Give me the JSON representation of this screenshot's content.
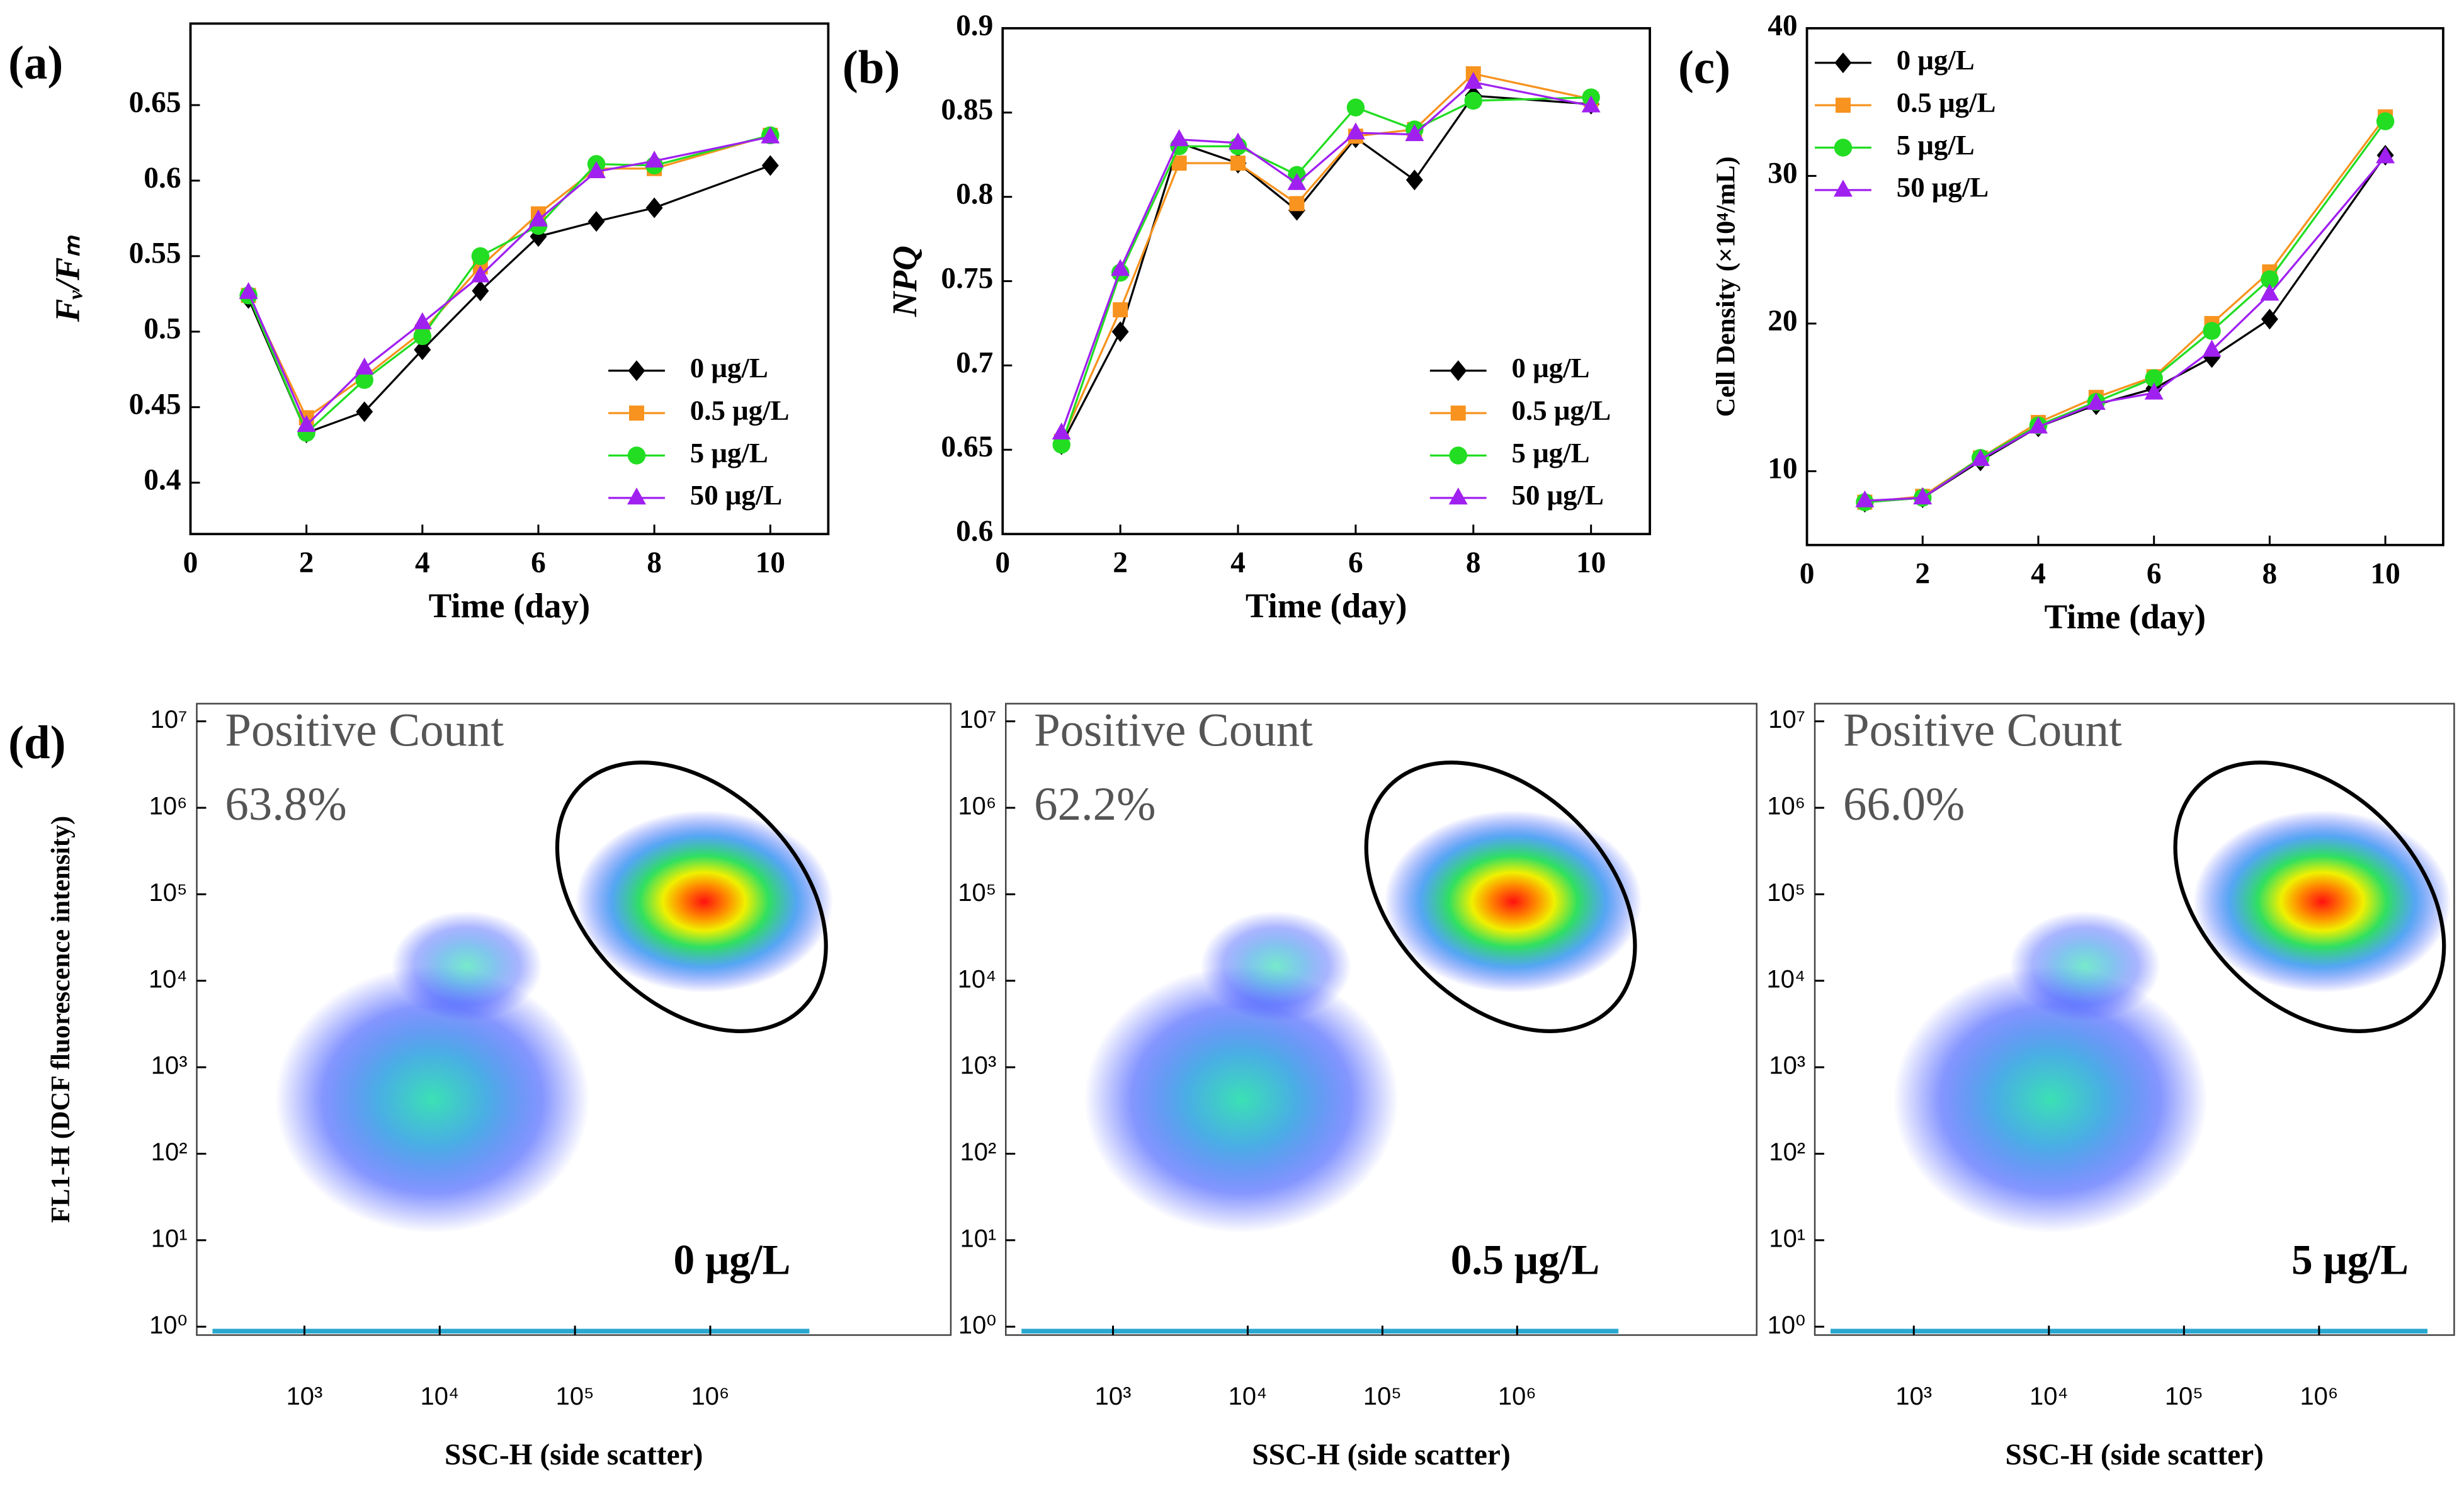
{
  "chart_data": [
    {
      "type": "line",
      "panel_label": "(a)",
      "xlabel": "Time (day)",
      "ylabel": "Fᵥ/Fₘ",
      "ylabel_italic": true,
      "x": [
        1,
        2,
        3,
        4,
        5,
        6,
        7,
        8,
        10
      ],
      "xlim": [
        0,
        11
      ],
      "xticks": [
        0,
        2,
        4,
        6,
        8,
        10
      ],
      "ylim": [
        0.366,
        0.704
      ],
      "yticks": [
        0.4,
        0.45,
        0.5,
        0.55,
        0.6,
        0.65
      ],
      "legend": "lower right",
      "series": [
        {
          "name": "0 μg/L",
          "color": "#000000",
          "marker": "diamond",
          "values": [
            0.522,
            0.433,
            0.447,
            0.488,
            0.527,
            0.563,
            0.573,
            0.582,
            0.61
          ]
        },
        {
          "name": "0.5 μg/L",
          "color": "#f7931e",
          "marker": "square",
          "values": [
            0.524,
            0.443,
            0.47,
            0.5,
            0.543,
            0.578,
            0.608,
            0.608,
            0.63
          ]
        },
        {
          "name": "5 μg/L",
          "color": "#22dd22",
          "marker": "circle",
          "values": [
            0.524,
            0.433,
            0.468,
            0.497,
            0.55,
            0.57,
            0.611,
            0.61,
            0.63
          ]
        },
        {
          "name": "50 μg/L",
          "color": "#a020f0",
          "marker": "triangle",
          "values": [
            0.526,
            0.438,
            0.476,
            0.506,
            0.537,
            0.574,
            0.606,
            0.613,
            0.629
          ]
        }
      ]
    },
    {
      "type": "line",
      "panel_label": "(b)",
      "xlabel": "Time (day)",
      "ylabel": "NPQ",
      "ylabel_italic": true,
      "x": [
        1,
        2,
        3,
        4,
        5,
        6,
        7,
        8,
        10
      ],
      "xlim": [
        0,
        11
      ],
      "xticks": [
        0,
        2,
        4,
        6,
        8,
        10
      ],
      "ylim": [
        0.6,
        0.9
      ],
      "yticks": [
        0.6,
        0.65,
        0.7,
        0.75,
        0.8,
        0.85,
        0.9
      ],
      "legend": "lower right",
      "series": [
        {
          "name": "0 μg/L",
          "color": "#000000",
          "marker": "diamond",
          "values": [
            0.653,
            0.72,
            0.832,
            0.82,
            0.792,
            0.835,
            0.81,
            0.86,
            0.855
          ]
        },
        {
          "name": "0.5 μg/L",
          "color": "#f7931e",
          "marker": "square",
          "values": [
            0.655,
            0.733,
            0.82,
            0.82,
            0.796,
            0.836,
            0.84,
            0.873,
            0.858
          ]
        },
        {
          "name": "5 μg/L",
          "color": "#22dd22",
          "marker": "circle",
          "values": [
            0.653,
            0.755,
            0.83,
            0.83,
            0.813,
            0.853,
            0.84,
            0.857,
            0.859
          ]
        },
        {
          "name": "50 μg/L",
          "color": "#a020f0",
          "marker": "triangle",
          "values": [
            0.66,
            0.757,
            0.834,
            0.832,
            0.808,
            0.838,
            0.837,
            0.868,
            0.854
          ]
        }
      ]
    },
    {
      "type": "line",
      "panel_label": "(c)",
      "xlabel": "Time (day)",
      "ylabel": "Cell Density (×10⁴/mL)",
      "ylabel_italic": false,
      "x": [
        1,
        2,
        3,
        4,
        5,
        6,
        7,
        8,
        10
      ],
      "xlim": [
        0,
        11
      ],
      "xticks": [
        0,
        2,
        4,
        6,
        8,
        10
      ],
      "ylim": [
        5,
        40
      ],
      "yticks": [
        10,
        20,
        30,
        40
      ],
      "legend": "upper left",
      "series": [
        {
          "name": "0 μg/L",
          "color": "#000000",
          "marker": "diamond",
          "values": [
            7.9,
            8.2,
            10.7,
            13.0,
            14.5,
            15.6,
            17.7,
            20.3,
            31.4
          ]
        },
        {
          "name": "0.5 μg/L",
          "color": "#f7931e",
          "marker": "square",
          "values": [
            7.9,
            8.3,
            10.9,
            13.3,
            15.0,
            16.4,
            20.0,
            23.5,
            34.0
          ]
        },
        {
          "name": "5 μg/L",
          "color": "#22dd22",
          "marker": "circle",
          "values": [
            7.9,
            8.2,
            10.9,
            13.1,
            14.7,
            16.3,
            19.5,
            23.0,
            33.7
          ]
        },
        {
          "name": "50 μg/L",
          "color": "#a020f0",
          "marker": "triangle",
          "values": [
            8.0,
            8.2,
            10.8,
            13.0,
            14.6,
            15.3,
            18.2,
            22.0,
            31.3
          ]
        }
      ]
    },
    {
      "type": "density",
      "panel_label": "(d)",
      "xlabel": "SSC-H (side scatter)",
      "ylabel": "FL1-H (DCF fluorescence intensity)",
      "xlog": true,
      "ylog": true,
      "xlim": [
        160,
        60000000
      ],
      "ylim": [
        0.8,
        16000000
      ],
      "xticks": [
        {
          "value": 1000,
          "label": "10³"
        },
        {
          "value": 10000,
          "label": "10⁴"
        },
        {
          "value": 100000,
          "label": "10⁵"
        },
        {
          "value": 1000000,
          "label": "10⁶"
        }
      ],
      "yticks": [
        {
          "value": 1,
          "label": "10⁰"
        },
        {
          "value": 10,
          "label": "10¹"
        },
        {
          "value": 100,
          "label": "10²"
        },
        {
          "value": 1000,
          "label": "10³"
        },
        {
          "value": 10000,
          "label": "10⁴"
        },
        {
          "value": 100000,
          "label": "10⁵"
        },
        {
          "value": 1000000,
          "label": "10⁶"
        },
        {
          "value": 10000000,
          "label": "10⁷"
        }
      ],
      "annotation": "Positive Count",
      "positive_percent": 63.8,
      "positive_percent_label": "63.8%",
      "sample": "0 μg/L"
    },
    {
      "type": "density",
      "xlabel": "SSC-H (side scatter)",
      "xlog": true,
      "ylog": true,
      "xlim": [
        160,
        60000000
      ],
      "ylim": [
        0.8,
        16000000
      ],
      "xticks": [
        {
          "value": 1000,
          "label": "10³"
        },
        {
          "value": 10000,
          "label": "10⁴"
        },
        {
          "value": 100000,
          "label": "10⁵"
        },
        {
          "value": 1000000,
          "label": "10⁶"
        }
      ],
      "yticks": [
        {
          "value": 1,
          "label": "10⁰"
        },
        {
          "value": 10,
          "label": "10¹"
        },
        {
          "value": 100,
          "label": "10²"
        },
        {
          "value": 1000,
          "label": "10³"
        },
        {
          "value": 10000,
          "label": "10⁴"
        },
        {
          "value": 100000,
          "label": "10⁵"
        },
        {
          "value": 1000000,
          "label": "10⁶"
        },
        {
          "value": 10000000,
          "label": "10⁷"
        }
      ],
      "annotation": "Positive Count",
      "positive_percent": 62.2,
      "positive_percent_label": "62.2%",
      "sample": "0.5 μg/L"
    },
    {
      "type": "density",
      "xlabel": "SSC-H (side scatter)",
      "xlog": true,
      "ylog": true,
      "xlim": [
        185,
        10000000
      ],
      "ylim": [
        0.8,
        16000000
      ],
      "xticks": [
        {
          "value": 1000,
          "label": "10³"
        },
        {
          "value": 10000,
          "label": "10⁴"
        },
        {
          "value": 100000,
          "label": "10⁵"
        },
        {
          "value": 1000000,
          "label": "10⁶"
        }
      ],
      "yticks": [
        {
          "value": 1,
          "label": "10⁰"
        },
        {
          "value": 10,
          "label": "10¹"
        },
        {
          "value": 100,
          "label": "10²"
        },
        {
          "value": 1000,
          "label": "10³"
        },
        {
          "value": 10000,
          "label": "10⁴"
        },
        {
          "value": 100000,
          "label": "10⁵"
        },
        {
          "value": 1000000,
          "label": "10⁶"
        },
        {
          "value": 10000000,
          "label": "10⁷"
        }
      ],
      "annotation": "Positive Count",
      "positive_percent": 66.0,
      "positive_percent_label": "66.0%",
      "sample": "5 μg/L"
    }
  ]
}
